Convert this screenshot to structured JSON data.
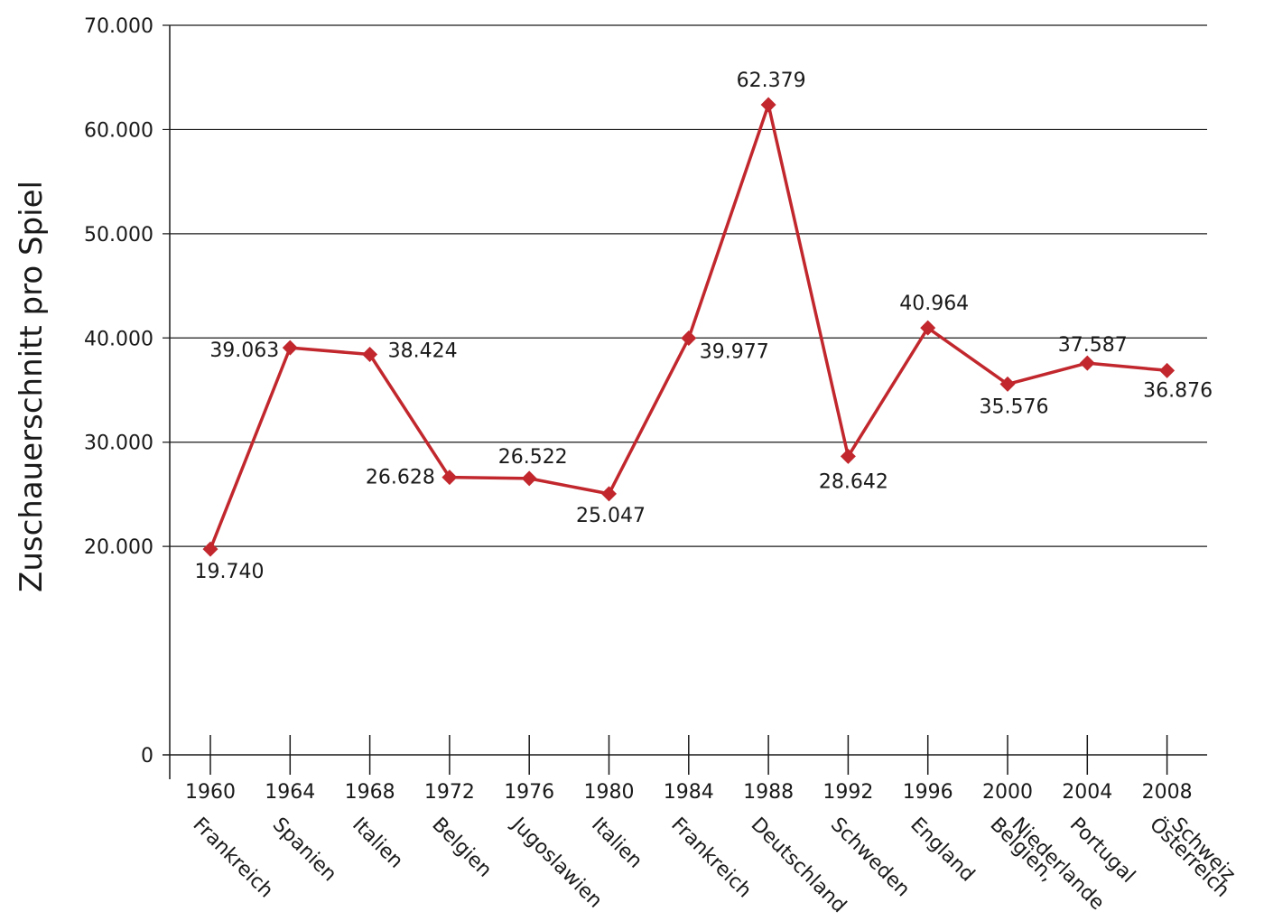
{
  "chart_data": {
    "type": "line",
    "ylabel": "Zuschauerschnitt pro Spiel",
    "ylim": [
      0,
      70000
    ],
    "yticks": [
      0,
      20000,
      30000,
      40000,
      50000,
      60000,
      70000
    ],
    "ytick_labels": [
      "0",
      "20.000",
      "30.000",
      "40.000",
      "50.000",
      "60.000",
      "70.000"
    ],
    "grid": true,
    "categories": [
      "1960",
      "1964",
      "1968",
      "1972",
      "1976",
      "1980",
      "1984",
      "1988",
      "1992",
      "1996",
      "2000",
      "2004",
      "2008"
    ],
    "hosts": [
      [
        "Frankreich"
      ],
      [
        "Spanien"
      ],
      [
        "Italien"
      ],
      [
        "Belgien"
      ],
      [
        "Jugoslawien"
      ],
      [
        "Italien"
      ],
      [
        "Frankreich"
      ],
      [
        "Deutschland"
      ],
      [
        "Schweden"
      ],
      [
        "England"
      ],
      [
        "Belgien,",
        "Niederlande"
      ],
      [
        "Portugal"
      ],
      [
        "Österreich",
        "Schweiz"
      ]
    ],
    "series": [
      {
        "values": [
          19740,
          39063,
          38424,
          26628,
          26522,
          25047,
          39977,
          62379,
          28642,
          40964,
          35576,
          37587,
          36876
        ],
        "labels": [
          "19.740",
          "39.063",
          "38.424",
          "26.628",
          "26.522",
          "25.047",
          "39.977",
          "62.379",
          "28.642",
          "40.964",
          "35.576",
          "37.587",
          "36.876"
        ],
        "color": "#c1272d",
        "marker": "diamond"
      }
    ]
  }
}
